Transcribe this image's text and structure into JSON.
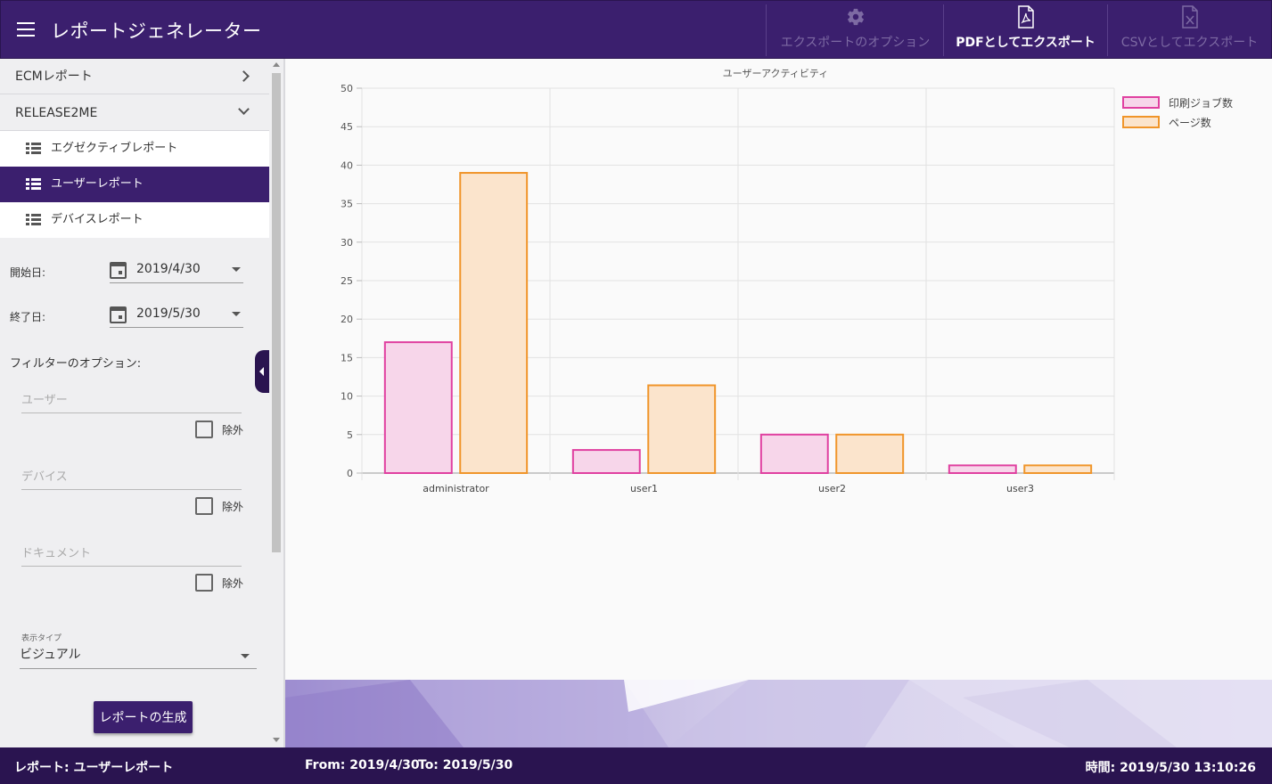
{
  "appbar": {
    "title": "レポートジェネレーター",
    "export_options_label": "エクスポートのオプション",
    "pdf_label": "PDFとしてエクスポート",
    "csv_label": "CSVとしてエクスポート",
    "icons": [
      "gear-icon",
      "pdf-file-icon",
      "excel-file-icon"
    ]
  },
  "sidebar": {
    "groups": [
      {
        "label": "ECMレポート",
        "expanded": false
      },
      {
        "label": "RELEASE2ME",
        "expanded": true
      }
    ],
    "reports": [
      {
        "label": "エグゼクティブレポート",
        "active": false
      },
      {
        "label": "ユーザーレポート",
        "active": true
      },
      {
        "label": "デバイスレポート",
        "active": false
      }
    ],
    "start_label": "開始日:",
    "start_value": "2019/4/30",
    "end_label": "終了日:",
    "end_value": "2019/5/30",
    "filter_title": "フィルターのオプション:",
    "user_placeholder": "ユーザー",
    "device_placeholder": "デバイス",
    "document_placeholder": "ドキュメント",
    "exclude_label": "除外",
    "display_type_label": "表示タイプ",
    "display_type_value": "ビジュアル",
    "generate_button": "レポートの生成"
  },
  "statusbar": {
    "report": "レポート: ユーザーレポート",
    "from": "From: 2019/4/30",
    "to": "To: 2019/5/30",
    "time": "時間: 2019/5/30 13:10:26"
  },
  "colors": {
    "primary": "#3b1f6e",
    "dark": "#2a1450",
    "series1_stroke": "#e040a0",
    "series1_fill": "#f7d6ea",
    "series2_stroke": "#f0952a",
    "series2_fill": "#fbe4cc"
  },
  "chart_data": {
    "type": "bar",
    "title": "ユーザーアクティビティ",
    "categories": [
      "administrator",
      "user1",
      "user2",
      "user3"
    ],
    "series": [
      {
        "name": "印刷ジョブ数",
        "values": [
          17,
          3,
          5,
          1
        ]
      },
      {
        "name": "ページ数",
        "values": [
          39,
          11.4,
          5,
          1
        ]
      }
    ],
    "ylim": [
      0,
      50
    ],
    "yticks": [
      0,
      5,
      10,
      15,
      20,
      25,
      30,
      35,
      40,
      45,
      50
    ],
    "grid": true,
    "legend": "top-right"
  }
}
